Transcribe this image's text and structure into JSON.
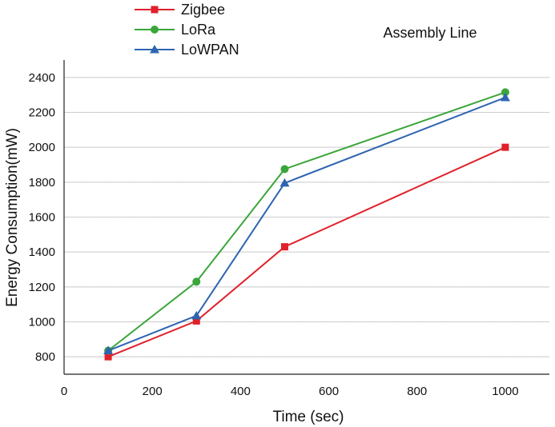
{
  "chart_data": {
    "type": "line",
    "title": "",
    "annotation": "Assembly Line",
    "xlabel": "Time (sec)",
    "ylabel": "Energy Consumption(mW)",
    "xlim": [
      0,
      1100
    ],
    "ylim": [
      700,
      2500
    ],
    "x_ticks": [
      0,
      200,
      400,
      600,
      800,
      1000
    ],
    "y_ticks": [
      800,
      1000,
      1200,
      1400,
      1600,
      1800,
      2000,
      2200,
      2400
    ],
    "grid": "horizontal",
    "legend_position": "top-left",
    "x": [
      100,
      300,
      500,
      1000
    ],
    "series": [
      {
        "name": "Zigbee",
        "marker": "square",
        "color": "#e0202a",
        "values": [
          800,
          1005,
          1430,
          2000
        ]
      },
      {
        "name": "LoRa",
        "marker": "circle",
        "color": "#3aa63a",
        "values": [
          835,
          1230,
          1875,
          2315
        ]
      },
      {
        "name": "LoWPAN",
        "marker": "triangle",
        "color": "#2e64b0",
        "values": [
          835,
          1035,
          1795,
          2285
        ]
      }
    ]
  }
}
